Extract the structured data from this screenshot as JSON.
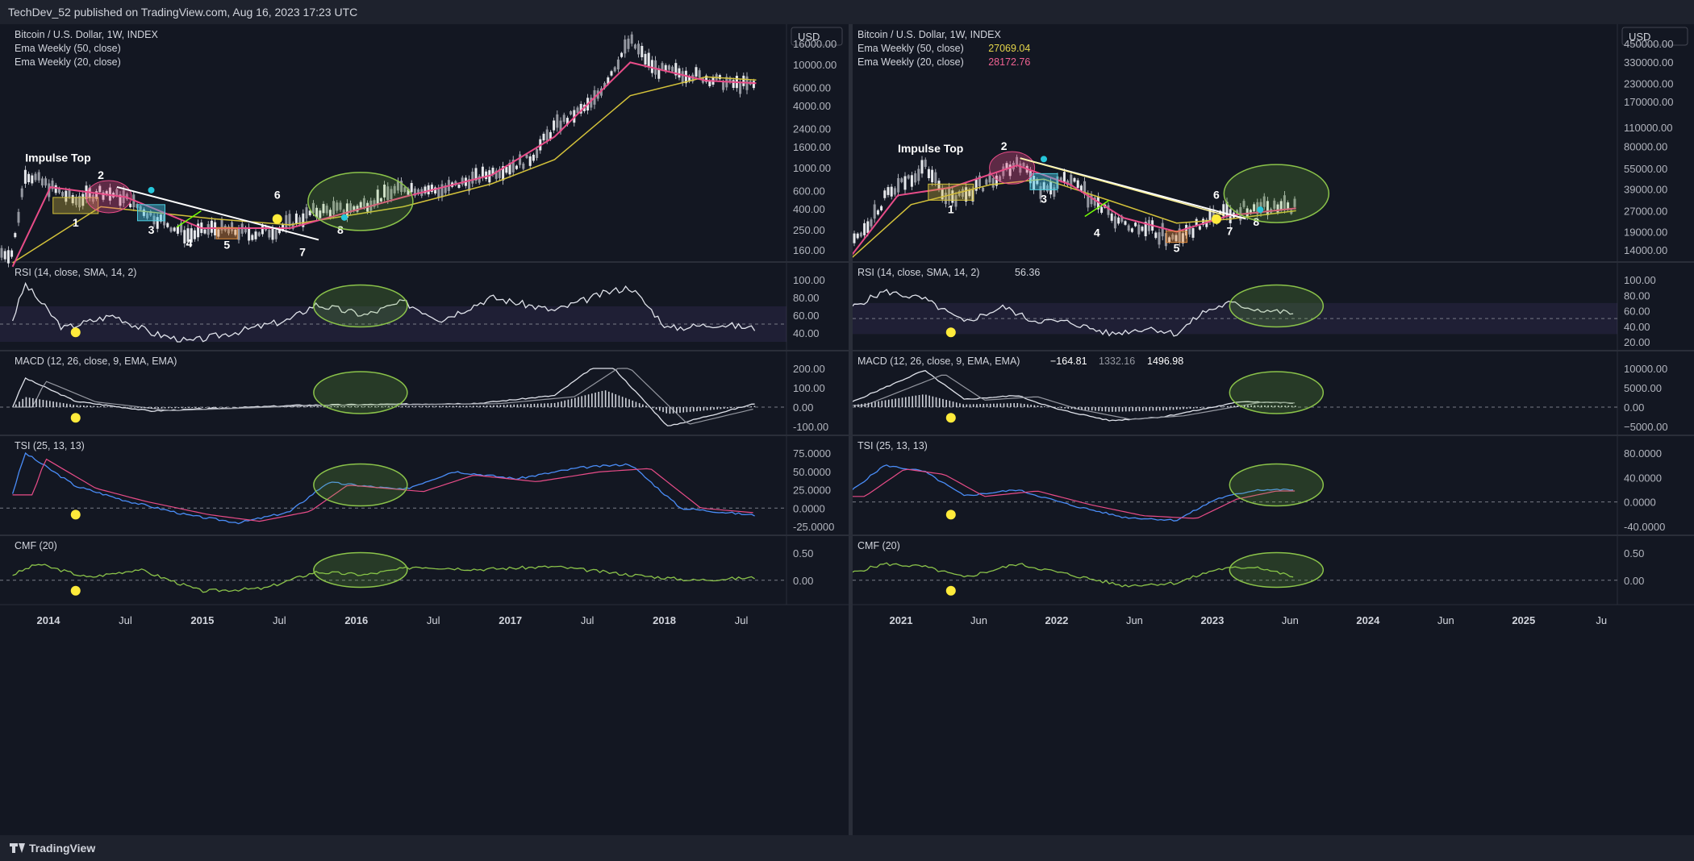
{
  "header": {
    "published": "TechDev_52 published on TradingView.com, Aug 16, 2023 17:23 UTC"
  },
  "footer": {
    "brand": "TradingView"
  },
  "chart_data": [
    {
      "type": "line",
      "panel": "left",
      "currency": "USD",
      "legend": [
        {
          "label": "Bitcoin / U.S. Dollar, 1W, INDEX",
          "value": ""
        },
        {
          "label": "Ema Weekly (50, close)",
          "value": ""
        },
        {
          "label": "Ema Weekly (20, close)",
          "value": ""
        }
      ],
      "x_ticks": [
        "2014",
        "Jul",
        "2015",
        "Jul",
        "2016",
        "Jul",
        "2017",
        "Jul",
        "2018",
        "Jul"
      ],
      "price_axis": {
        "scale": "log",
        "ticks": [
          "16000.00",
          "10000.00",
          "6000.00",
          "4000.00",
          "2400.00",
          "1600.00",
          "1000.00",
          "600.00",
          "400.00",
          "250.00",
          "160.00"
        ]
      },
      "price_series": {
        "name": "",
        "x": [
          "2013-11",
          "2013-12",
          "2014-02",
          "2014-04",
          "2014-06",
          "2014-08",
          "2014-10",
          "2015-01",
          "2015-03",
          "2015-06",
          "2015-08",
          "2015-11",
          "2016-02",
          "2016-06",
          "2016-09",
          "2017-01",
          "2017-04",
          "2017-06",
          "2017-09",
          "2017-12",
          "2018-02",
          "2018-05",
          "2018-08",
          "2018-10"
        ],
        "y": [
          150,
          900,
          650,
          480,
          600,
          500,
          350,
          220,
          260,
          230,
          250,
          380,
          400,
          650,
          600,
          900,
          1200,
          2500,
          4200,
          17000,
          9000,
          8000,
          6500,
          6300
        ]
      },
      "ema50": {
        "x": [
          "2013-11",
          "2014-06",
          "2015-03",
          "2015-09",
          "2016-06",
          "2017-01",
          "2017-06",
          "2017-12",
          "2018-06",
          "2018-10"
        ],
        "y": [
          120,
          420,
          320,
          280,
          420,
          700,
          1200,
          5000,
          7600,
          7100
        ]
      },
      "ema20": {
        "x": [
          "2013-11",
          "2014-02",
          "2014-08",
          "2015-02",
          "2015-09",
          "2016-06",
          "2017-01",
          "2017-06",
          "2017-12",
          "2018-06",
          "2018-10"
        ],
        "y": [
          110,
          650,
          520,
          260,
          260,
          520,
          850,
          2000,
          10500,
          7000,
          6600
        ]
      },
      "annotations": [
        {
          "label": "Impulse Top",
          "x": "2013-12",
          "y": 1150
        },
        {
          "label": "1",
          "x": "2014-04",
          "y": 270
        },
        {
          "label": "2",
          "x": "2014-06",
          "y": 780
        },
        {
          "label": "3",
          "x": "2014-10",
          "y": 230
        },
        {
          "label": "4",
          "x": "2015-01",
          "y": 170
        },
        {
          "label": "5",
          "x": "2015-04",
          "y": 165
        },
        {
          "label": "6",
          "x": "2015-08",
          "y": 500
        },
        {
          "label": "7",
          "x": "2015-10",
          "y": 140
        },
        {
          "label": "8",
          "x": "2016-01",
          "y": 230
        }
      ],
      "rsi": {
        "title": "RSI (14, close, SMA, 14, 2)",
        "ticks": [
          "100.00",
          "80.00",
          "60.00",
          "40.00"
        ],
        "x": [
          "2013-11",
          "2013-12",
          "2014-03",
          "2014-07",
          "2014-10",
          "2015-01",
          "2015-05",
          "2015-09",
          "2015-11",
          "2016-03",
          "2016-06",
          "2016-09",
          "2017-01",
          "2017-06",
          "2017-10",
          "2017-12",
          "2018-03",
          "2018-07",
          "2018-10"
        ],
        "y": [
          55,
          95,
          45,
          60,
          40,
          30,
          42,
          55,
          72,
          60,
          75,
          55,
          80,
          65,
          85,
          92,
          45,
          50,
          45
        ]
      },
      "macd": {
        "title": "MACD (12, 26, close, 9, EMA, EMA)",
        "ticks": [
          "200.00",
          "100.00",
          "0.00",
          "-100.00"
        ],
        "x": [
          "2013-11",
          "2013-12",
          "2014-04",
          "2014-10",
          "2015-04",
          "2015-10",
          "2016-06",
          "2016-12",
          "2017-06",
          "2017-10",
          "2018-03",
          "2018-10"
        ],
        "y": [
          0,
          150,
          30,
          -20,
          -5,
          10,
          15,
          20,
          60,
          250,
          -100,
          20
        ]
      },
      "tsi": {
        "title": "TSI (25, 13, 13)",
        "ticks": [
          "75.0000",
          "50.0000",
          "25.0000",
          "0.0000",
          "-25.0000"
        ],
        "x": [
          "2013-11",
          "2013-12",
          "2014-04",
          "2014-08",
          "2015-01",
          "2015-05",
          "2015-09",
          "2015-12",
          "2016-06",
          "2016-10",
          "2017-03",
          "2017-08",
          "2017-12",
          "2018-04",
          "2018-10"
        ],
        "y": [
          20,
          75,
          30,
          10,
          -10,
          -20,
          -5,
          35,
          25,
          50,
          40,
          55,
          60,
          0,
          -10
        ]
      },
      "cmf": {
        "title": "CMF (20)",
        "ticks": [
          "0.50",
          "0.00"
        ],
        "x": [
          "2013-11",
          "2014-01",
          "2014-05",
          "2014-09",
          "2015-02",
          "2015-07",
          "2015-11",
          "2016-03",
          "2016-07",
          "2016-12",
          "2017-06",
          "2017-12",
          "2018-05",
          "2018-10"
        ],
        "y": [
          0.1,
          0.3,
          0.05,
          0.2,
          -0.2,
          -0.15,
          0.15,
          0.1,
          0.25,
          0.2,
          0.25,
          0.1,
          0.0,
          0.05
        ]
      }
    },
    {
      "type": "line",
      "panel": "right",
      "currency": "USD",
      "legend": [
        {
          "label": "Bitcoin / U.S. Dollar, 1W, INDEX",
          "value": ""
        },
        {
          "label": "Ema Weekly (50, close)",
          "value": "27069.04"
        },
        {
          "label": "Ema Weekly (20, close)",
          "value": "28172.76"
        }
      ],
      "x_ticks": [
        "2021",
        "Jun",
        "2022",
        "Jun",
        "2023",
        "Jun",
        "2024",
        "Jun",
        "2025",
        "Ju"
      ],
      "price_axis": {
        "scale": "log",
        "ticks": [
          "450000.00",
          "330000.00",
          "230000.00",
          "170000.00",
          "110000.00",
          "80000.00",
          "55000.00",
          "39000.00",
          "27000.00",
          "19000.00",
          "14000.00"
        ]
      },
      "price_series": {
        "name": "",
        "x": [
          "2020-10",
          "2021-01",
          "2021-04",
          "2021-06",
          "2021-09",
          "2021-11",
          "2022-01",
          "2022-03",
          "2022-05",
          "2022-07",
          "2022-09",
          "2022-11",
          "2023-01",
          "2023-03",
          "2023-05",
          "2023-08"
        ],
        "y": [
          13000,
          33000,
          58000,
          32000,
          45000,
          64000,
          38000,
          45000,
          30000,
          21000,
          19500,
          16500,
          22000,
          27000,
          29000,
          29000
        ]
      },
      "ema50": {
        "x": [
          "2020-10",
          "2021-03",
          "2021-09",
          "2022-01",
          "2022-06",
          "2022-11",
          "2023-03",
          "2023-08"
        ],
        "y": [
          11000,
          30000,
          42000,
          46000,
          32000,
          22000,
          23500,
          27069.04
        ]
      },
      "ema20": {
        "x": [
          "2020-10",
          "2021-02",
          "2021-06",
          "2021-11",
          "2022-03",
          "2022-07",
          "2022-11",
          "2023-03",
          "2023-08"
        ],
        "y": [
          11000,
          35000,
          40000,
          58000,
          42000,
          24000,
          19000,
          25000,
          28172.76
        ]
      },
      "annotations": [
        {
          "label": "Impulse Top",
          "x": "2021-02",
          "y": 72000
        },
        {
          "label": "1",
          "x": "2021-06",
          "y": 26000
        },
        {
          "label": "2",
          "x": "2021-10",
          "y": 75000
        },
        {
          "label": "3",
          "x": "2022-01",
          "y": 31000
        },
        {
          "label": "4",
          "x": "2022-05",
          "y": 17500
        },
        {
          "label": "5",
          "x": "2022-11",
          "y": 13500
        },
        {
          "label": "6",
          "x": "2023-02",
          "y": 33000
        },
        {
          "label": "7",
          "x": "2023-03",
          "y": 18000
        },
        {
          "label": "8",
          "x": "2023-05",
          "y": 21000
        }
      ],
      "rsi": {
        "title": "RSI (14, close, SMA, 14, 2)",
        "value": "56.36",
        "ticks": [
          "100.00",
          "80.00",
          "60.00",
          "40.00",
          "20.00"
        ],
        "x": [
          "2020-10",
          "2021-01",
          "2021-04",
          "2021-07",
          "2021-10",
          "2021-12",
          "2022-03",
          "2022-06",
          "2022-09",
          "2022-11",
          "2023-01",
          "2023-03",
          "2023-05",
          "2023-08"
        ],
        "y": [
          60,
          85,
          75,
          45,
          65,
          48,
          45,
          30,
          38,
          30,
          58,
          70,
          62,
          56.36
        ]
      },
      "macd": {
        "title": "MACD (12, 26, close, 9, EMA, EMA)",
        "values": [
          "−164.81",
          "1332.16",
          "1496.98"
        ],
        "ticks": [
          "10000.00",
          "5000.00",
          "0.00",
          "−5000.00"
        ],
        "x": [
          "2020-10",
          "2021-01",
          "2021-04",
          "2021-07",
          "2021-11",
          "2022-02",
          "2022-06",
          "2022-10",
          "2023-01",
          "2023-04",
          "2023-08"
        ],
        "y": [
          500,
          5000,
          9500,
          2000,
          3000,
          -500,
          -3500,
          -2500,
          -500,
          1500,
          1000
        ]
      },
      "tsi": {
        "title": "TSI (25, 13, 13)",
        "ticks": [
          "80.0000",
          "40.0000",
          "0.0000",
          "-40.0000"
        ],
        "x": [
          "2020-10",
          "2021-01",
          "2021-04",
          "2021-07",
          "2021-11",
          "2022-03",
          "2022-07",
          "2022-11",
          "2023-02",
          "2023-05",
          "2023-08"
        ],
        "y": [
          10,
          60,
          50,
          10,
          20,
          -5,
          -25,
          -30,
          5,
          20,
          20
        ]
      },
      "cmf": {
        "title": "CMF (20)",
        "ticks": [
          "0.50",
          "0.00"
        ],
        "x": [
          "2020-10",
          "2021-01",
          "2021-04",
          "2021-07",
          "2021-11",
          "2022-03",
          "2022-07",
          "2022-11",
          "2023-02",
          "2023-05",
          "2023-08"
        ],
        "y": [
          0.1,
          0.3,
          0.25,
          0.05,
          0.3,
          0.1,
          -0.1,
          -0.05,
          0.2,
          0.25,
          0.05
        ]
      }
    }
  ]
}
